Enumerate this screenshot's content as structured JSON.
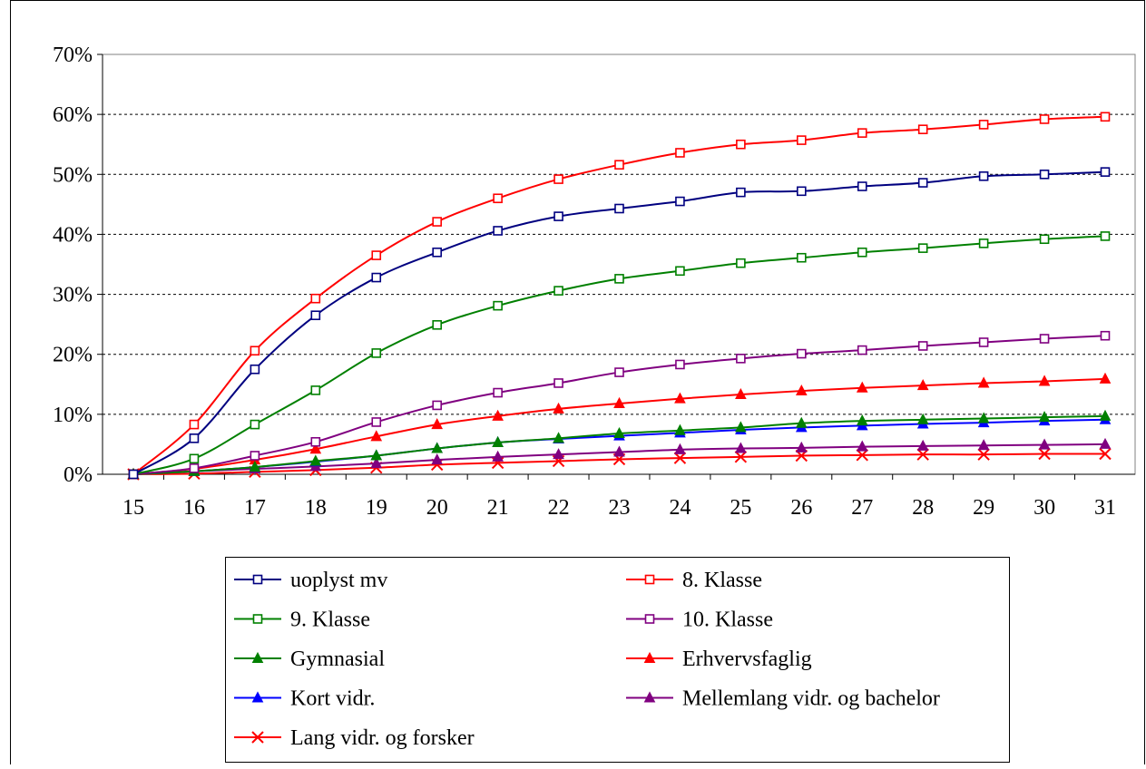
{
  "chart_data": {
    "type": "line",
    "title": "",
    "xlabel": "",
    "ylabel": "",
    "x": [
      15,
      16,
      17,
      18,
      19,
      20,
      21,
      22,
      23,
      24,
      25,
      26,
      27,
      28,
      29,
      30,
      31
    ],
    "ylim": [
      0,
      70
    ],
    "y_ticks": [
      "0%",
      "10%",
      "20%",
      "30%",
      "40%",
      "50%",
      "60%",
      "70%"
    ],
    "y_unit": "%",
    "grid": "horizontal dashed",
    "legend_position": "bottom",
    "series": [
      {
        "name": "uoplyst mv",
        "color": "#000080",
        "marker": "square",
        "values": [
          0,
          6,
          17.5,
          26.5,
          32.8,
          37,
          40.6,
          43,
          44.3,
          45.5,
          47,
          47.2,
          48,
          48.6,
          49.7,
          50,
          50.4
        ]
      },
      {
        "name": "8. Klasse",
        "color": "#ff0000",
        "marker": "square",
        "values": [
          0,
          8.3,
          20.6,
          29.3,
          36.5,
          42.1,
          46,
          49.2,
          51.6,
          53.6,
          55,
          55.7,
          56.9,
          57.5,
          58.3,
          59.2,
          59.6
        ]
      },
      {
        "name": "9. Klasse",
        "color": "#008000",
        "marker": "square",
        "values": [
          0,
          2.6,
          8.3,
          14,
          20.2,
          24.9,
          28.1,
          30.6,
          32.6,
          33.9,
          35.2,
          36.1,
          37,
          37.7,
          38.5,
          39.2,
          39.7
        ]
      },
      {
        "name": "10. Klasse",
        "color": "#800080",
        "marker": "square",
        "values": [
          0,
          1,
          3.1,
          5.4,
          8.7,
          11.5,
          13.6,
          15.2,
          17,
          18.3,
          19.3,
          20.1,
          20.7,
          21.4,
          22,
          22.6,
          23.1
        ]
      },
      {
        "name": "Gymnasial",
        "color": "#008000",
        "marker": "triangle",
        "values": [
          0,
          0.5,
          1.2,
          2.2,
          3.1,
          4.3,
          5.3,
          6,
          6.8,
          7.3,
          7.8,
          8.5,
          8.9,
          9.1,
          9.3,
          9.5,
          9.7
        ]
      },
      {
        "name": "Erhvervsfaglig",
        "color": "#ff0000",
        "marker": "triangle",
        "values": [
          0,
          0.9,
          2.4,
          4.2,
          6.3,
          8.3,
          9.7,
          10.9,
          11.8,
          12.6,
          13.3,
          13.9,
          14.4,
          14.8,
          15.2,
          15.5,
          15.9
        ]
      },
      {
        "name": "Kort vidr.",
        "color": "#0000ff",
        "marker": "triangle",
        "values": [
          0,
          0.5,
          1.2,
          2.1,
          3.1,
          4.3,
          5.3,
          5.9,
          6.4,
          6.9,
          7.4,
          7.8,
          8.1,
          8.4,
          8.6,
          8.9,
          9.1
        ]
      },
      {
        "name": "Mellemlang vidr. og bachelor",
        "color": "#800080",
        "marker": "triangle",
        "values": [
          0,
          0.5,
          0.9,
          1.3,
          1.8,
          2.4,
          2.9,
          3.3,
          3.7,
          4.1,
          4.3,
          4.4,
          4.6,
          4.7,
          4.8,
          4.9,
          5
        ]
      },
      {
        "name": "Lang vidr. og forsker",
        "color": "#ff0000",
        "marker": "x",
        "values": [
          0,
          0.1,
          0.4,
          0.7,
          1.1,
          1.6,
          1.9,
          2.2,
          2.5,
          2.7,
          2.9,
          3.1,
          3.2,
          3.3,
          3.3,
          3.4,
          3.4
        ]
      }
    ]
  }
}
